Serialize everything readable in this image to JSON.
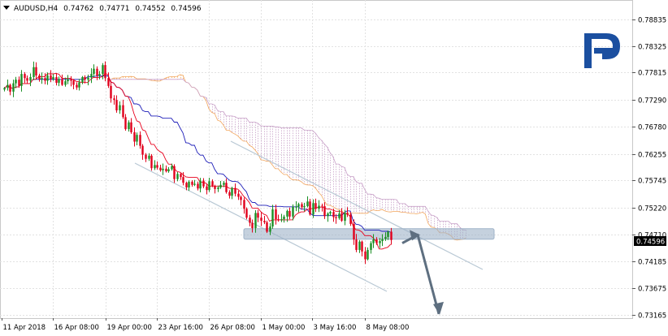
{
  "header": {
    "symbol": "AUDUSD,H4",
    "open": "0.74762",
    "high": "0.74771",
    "low": "0.74552",
    "close": "0.74596"
  },
  "logo": {
    "letter": "R"
  },
  "chart_data": {
    "type": "candlestick",
    "title": "AUDUSD,H4",
    "current_price": "0.74596",
    "y_ticks": [
      "0.78835",
      "0.78325",
      "0.77815",
      "0.77290",
      "0.76780",
      "0.76255",
      "0.75745",
      "0.75220",
      "0.74710",
      "0.74185",
      "0.73675",
      "0.73165"
    ],
    "ylim": [
      0.731,
      0.7921
    ],
    "x_ticks": [
      "11 Apr 2018",
      "16 Apr 08:00",
      "19 Apr 00:00",
      "23 Apr 16:00",
      "26 Apr 08:00",
      "1 May 00:00",
      "3 May 16:00",
      "8 May 08:00"
    ],
    "closes": [
      0.7752,
      0.7758,
      0.7745,
      0.7761,
      0.7768,
      0.7756,
      0.7779,
      0.7771,
      0.7766,
      0.7773,
      0.7792,
      0.7776,
      0.7769,
      0.7771,
      0.7766,
      0.7776,
      0.7769,
      0.7773,
      0.7762,
      0.7769,
      0.7758,
      0.7765,
      0.7769,
      0.7766,
      0.7758,
      0.7753,
      0.7763,
      0.7773,
      0.7768,
      0.7772,
      0.7779,
      0.7789,
      0.7776,
      0.7779,
      0.7796,
      0.7771,
      0.7756,
      0.7732,
      0.7729,
      0.7709,
      0.7719,
      0.7696,
      0.7673,
      0.7686,
      0.7667,
      0.7649,
      0.7662,
      0.7641,
      0.7624,
      0.7616,
      0.7622,
      0.7598,
      0.7604,
      0.7599,
      0.7594,
      0.7597,
      0.7592,
      0.7596,
      0.7602,
      0.7577,
      0.7587,
      0.7581,
      0.757,
      0.7561,
      0.7572,
      0.7566,
      0.7568,
      0.7559,
      0.7574,
      0.7563,
      0.7556,
      0.7573,
      0.7564,
      0.7558,
      0.7561,
      0.7566,
      0.757,
      0.7552,
      0.7545,
      0.756,
      0.7549,
      0.7543,
      0.7537,
      0.752,
      0.7503,
      0.7493,
      0.7483,
      0.7512,
      0.7503,
      0.7497,
      0.7494,
      0.7476,
      0.7486,
      0.7519,
      0.75,
      0.7498,
      0.75,
      0.7505,
      0.7516,
      0.7505,
      0.7524,
      0.7524,
      0.7529,
      0.7523,
      0.7525,
      0.7534,
      0.7509,
      0.7531,
      0.752,
      0.7526,
      0.7525,
      0.7506,
      0.7511,
      0.7514,
      0.7504,
      0.7502,
      0.7511,
      0.7497,
      0.7512,
      0.7509,
      0.7491,
      0.7461,
      0.7441,
      0.7457,
      0.7438,
      0.7423,
      0.7441,
      0.7454,
      0.7461,
      0.7454,
      0.7458,
      0.7462,
      0.7466,
      0.7476,
      0.746
    ],
    "support_zone_price": 0.7471,
    "channels": [
      {
        "name": "channel-upper-line"
      },
      {
        "name": "channel-lower-line"
      }
    ],
    "forecast_target": 0.7318,
    "colors": {
      "up_candle": "#1a8f24",
      "down_candle": "#e0001b",
      "tenkan": "#e8001c",
      "kijun": "#1d1db8",
      "senkou_a": "#f2a65c",
      "senkou_b": "#c9a2c9",
      "zone": "#9fb3c8",
      "arrow": "#5e6f80",
      "logo": "#1b4fa0",
      "channel": "#b8c8d4",
      "price_tag": "#000000"
    }
  }
}
